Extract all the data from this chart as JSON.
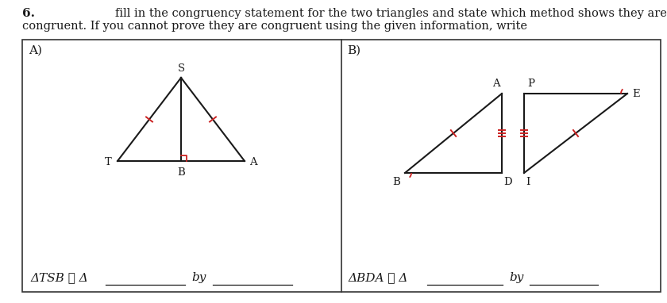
{
  "title_number": "6.",
  "title_text": "fill in the congruency statement for the two triangles and state which method shows they are",
  "title_text2": "congruent. If you cannot prove they are congruent using the given information, write",
  "panel_A_label": "A)",
  "panel_B_label": "B)",
  "bottom_text_A": "ΔTSB ≅ Δ",
  "bottom_text_A2": "by",
  "bottom_text_B": "ΔBDA ≅ Δ",
  "bottom_text_B2": "by",
  "bg_color": "#ffffff",
  "line_color": "#1a1a1a",
  "tick_color": "#cc2222",
  "panel_border_color": "#333333"
}
